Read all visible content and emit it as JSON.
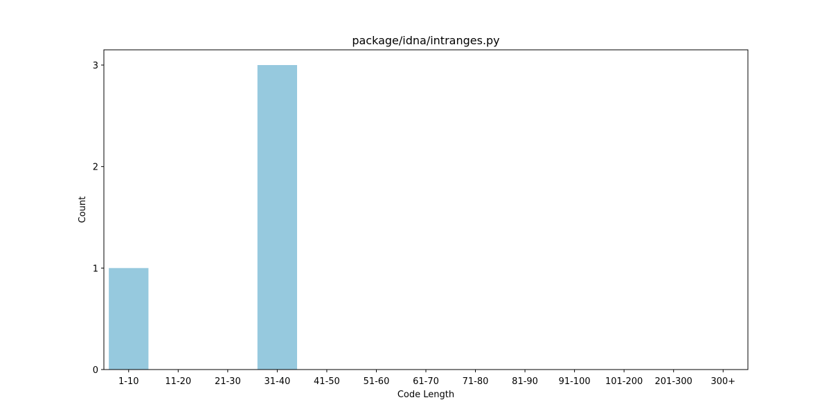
{
  "chart_data": {
    "type": "bar",
    "title": "package/idna/intranges.py",
    "xlabel": "Code Length",
    "ylabel": "Count",
    "categories": [
      "1-10",
      "11-20",
      "21-30",
      "31-40",
      "41-50",
      "51-60",
      "61-70",
      "71-80",
      "81-90",
      "91-100",
      "101-200",
      "201-300",
      "300+"
    ],
    "values": [
      1,
      0,
      0,
      3,
      0,
      0,
      0,
      0,
      0,
      0,
      0,
      0,
      0
    ],
    "ylim": [
      0,
      3.15
    ],
    "yticks": [
      0,
      1,
      2,
      3
    ],
    "grid": false,
    "legend": "none",
    "colors": {
      "bar": "#96c9de",
      "axis": "#000000",
      "background": "#ffffff"
    }
  }
}
